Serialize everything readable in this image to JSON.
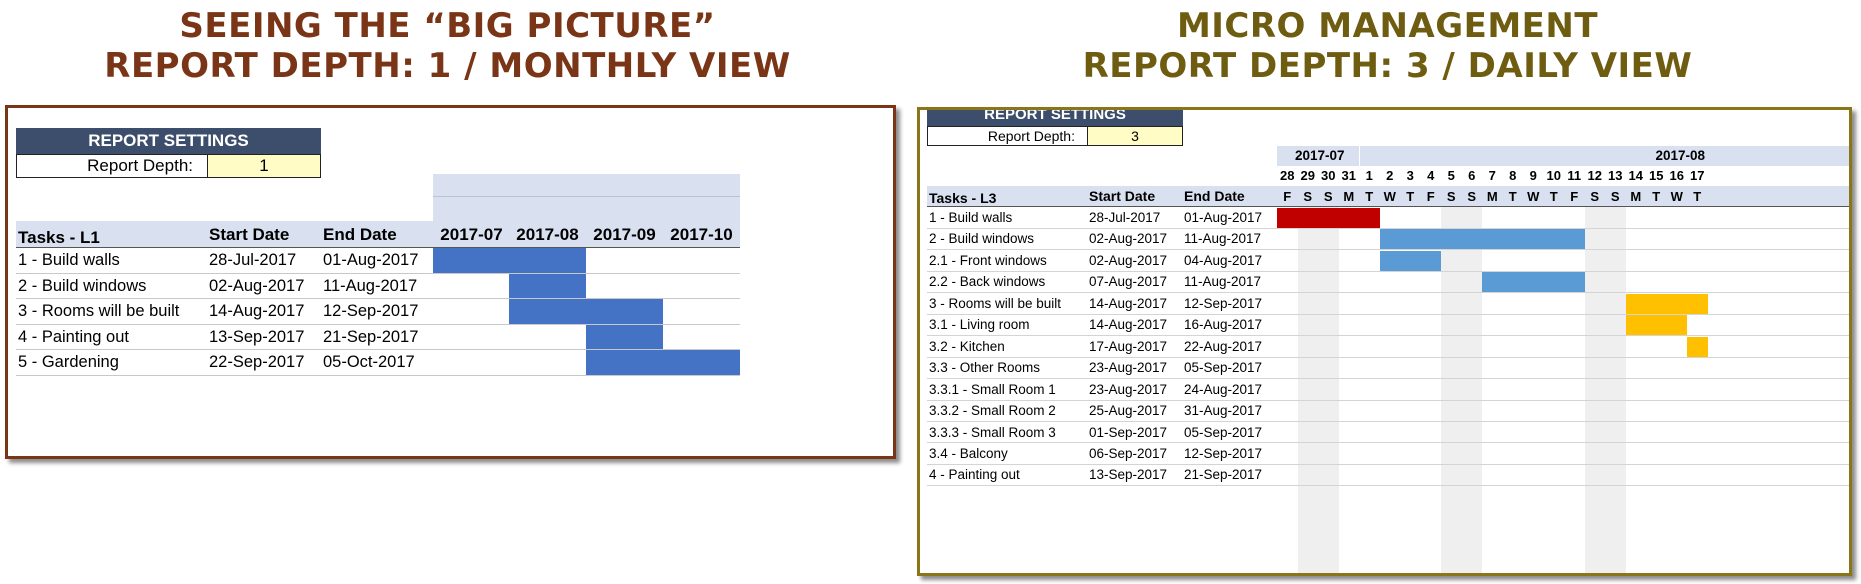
{
  "left": {
    "heading_line1": "SEEING THE “BIG PICTURE”",
    "heading_line2": "REPORT DEPTH: 1 / MONTHLY VIEW",
    "settings": {
      "title": "REPORT SETTINGS",
      "label": "Report Depth:",
      "value": "1"
    },
    "columns": {
      "task": "Tasks - L1",
      "start": "Start Date",
      "end": "End Date"
    },
    "months": [
      "2017-07",
      "2017-08",
      "2017-09",
      "2017-10"
    ],
    "bar_color": "#4472c4",
    "rows": [
      {
        "task": "1 - Build walls",
        "start": "28-Jul-2017",
        "end": "01-Aug-2017"
      },
      {
        "task": "2 - Build windows",
        "start": "02-Aug-2017",
        "end": "11-Aug-2017"
      },
      {
        "task": "3 - Rooms will be built",
        "start": "14-Aug-2017",
        "end": "12-Sep-2017"
      },
      {
        "task": "4 - Painting out",
        "start": "13-Sep-2017",
        "end": "21-Sep-2017"
      },
      {
        "task": "5 - Gardening",
        "start": "22-Sep-2017",
        "end": "05-Oct-2017"
      }
    ]
  },
  "right": {
    "heading_line1": "MICRO MANAGEMENT",
    "heading_line2": "REPORT DEPTH: 3 / DAILY VIEW",
    "settings": {
      "title": "REPORT SETTINGS",
      "label": "Report Depth:",
      "value": "3"
    },
    "columns": {
      "task": "Tasks - L3",
      "start": "Start Date",
      "end": "End Date"
    },
    "month_labels": [
      "2017-07",
      "2017-08"
    ],
    "day_numbers": [
      "28",
      "29",
      "30",
      "31",
      "1",
      "2",
      "3",
      "4",
      "5",
      "6",
      "7",
      "8",
      "9",
      "10",
      "11",
      "12",
      "13",
      "14",
      "15",
      "16",
      "17"
    ],
    "day_letters": [
      "F",
      "S",
      "S",
      "M",
      "T",
      "W",
      "T",
      "F",
      "S",
      "S",
      "M",
      "T",
      "W",
      "T",
      "F",
      "S",
      "S",
      "M",
      "T",
      "W",
      "T"
    ],
    "weekend_columns": [
      1,
      2,
      8,
      9,
      15,
      16
    ],
    "colors": {
      "red": "#c00000",
      "blue": "#5b9bd5",
      "orange": "#ffc000"
    },
    "rows": [
      {
        "task": "1 - Build walls",
        "start": "28-Jul-2017",
        "end": "01-Aug-2017",
        "bar_from": 0,
        "bar_to": 4,
        "color": "red"
      },
      {
        "task": "2 - Build windows",
        "start": "02-Aug-2017",
        "end": "11-Aug-2017",
        "bar_from": 5,
        "bar_to": 14,
        "color": "blue"
      },
      {
        "task": "2.1 - Front windows",
        "start": "02-Aug-2017",
        "end": "04-Aug-2017",
        "bar_from": 5,
        "bar_to": 7,
        "color": "blue"
      },
      {
        "task": "2.2 - Back windows",
        "start": "07-Aug-2017",
        "end": "11-Aug-2017",
        "bar_from": 10,
        "bar_to": 14,
        "color": "blue"
      },
      {
        "task": "3 - Rooms will be built",
        "start": "14-Aug-2017",
        "end": "12-Sep-2017",
        "bar_from": 17,
        "bar_to": 20,
        "color": "orange"
      },
      {
        "task": "3.1 - Living room",
        "start": "14-Aug-2017",
        "end": "16-Aug-2017",
        "bar_from": 17,
        "bar_to": 19,
        "color": "orange"
      },
      {
        "task": "3.2 - Kitchen",
        "start": "17-Aug-2017",
        "end": "22-Aug-2017",
        "bar_from": 20,
        "bar_to": 20,
        "color": "orange"
      },
      {
        "task": "3.3 - Other Rooms",
        "start": "23-Aug-2017",
        "end": "05-Sep-2017"
      },
      {
        "task": "3.3.1 - Small Room 1",
        "start": "23-Aug-2017",
        "end": "24-Aug-2017"
      },
      {
        "task": "3.3.2 - Small Room 2",
        "start": "25-Aug-2017",
        "end": "31-Aug-2017"
      },
      {
        "task": "3.3.3 - Small Room 3",
        "start": "01-Sep-2017",
        "end": "05-Sep-2017"
      },
      {
        "task": "3.4 - Balcony",
        "start": "06-Sep-2017",
        "end": "12-Sep-2017"
      },
      {
        "task": "4 - Painting out",
        "start": "13-Sep-2017",
        "end": "21-Sep-2017"
      }
    ]
  }
}
